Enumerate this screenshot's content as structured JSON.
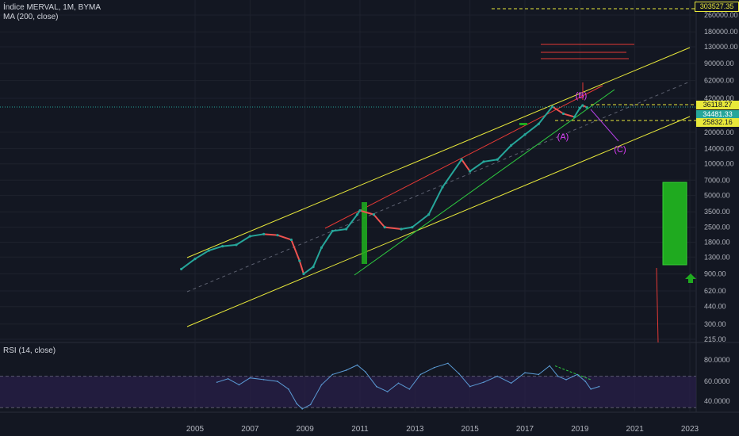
{
  "header": {
    "title": "Índice MERVAL, 1M, BYMA",
    "ma_label": "MA (200, close)",
    "rsi_label": "RSI (14, close)"
  },
  "colors": {
    "background": "#131722",
    "up_candle": "#26a69a",
    "down_candle": "#ef5350",
    "channel": "#e8e83a",
    "trendline_red": "#e53935",
    "trendline_green": "#2ecc40",
    "rsi_line": "#5b9bd5",
    "rsi_band": "#2a1f4a",
    "wave_label": "#e040fb",
    "target_box": "#1faa1f"
  },
  "price_labels": {
    "top": "303527.35",
    "upper": "36118.27",
    "last": "34481.33",
    "lower": "25832.16"
  },
  "wave_labels": [
    "(B)",
    "(A)",
    "(C)"
  ],
  "chart_data": [
    {
      "type": "line",
      "panel": "price",
      "scale": "log",
      "x_ticks": [
        "2005",
        "2007",
        "2009",
        "2011",
        "2013",
        "2015",
        "2017",
        "2019",
        "2021",
        "2023"
      ],
      "y_ticks": [
        "260000.00",
        "180000.00",
        "130000.00",
        "90000.00",
        "62000.00",
        "42000.00",
        "20000.00",
        "14000.00",
        "10000.00",
        "7000.00",
        "5000.00",
        "3500.00",
        "2500.00",
        "1800.00",
        "1300.00",
        "900.00",
        "620.00",
        "440.00",
        "300.00",
        "215.00"
      ],
      "ylim": [
        215,
        260000
      ],
      "series": [
        {
          "points": [
            [
              2004.5,
              1000
            ],
            [
              2005.0,
              1250
            ],
            [
              2005.5,
              1500
            ],
            [
              2006.0,
              1650
            ],
            [
              2006.5,
              1700
            ],
            [
              2007.0,
              2050
            ],
            [
              2007.5,
              2150
            ],
            [
              2008.0,
              2100
            ],
            [
              2008.5,
              1900
            ],
            [
              2008.8,
              1200
            ],
            [
              2008.95,
              900
            ],
            [
              2009.3,
              1050
            ],
            [
              2009.6,
              1600
            ],
            [
              2010.0,
              2300
            ],
            [
              2010.5,
              2400
            ],
            [
              2010.9,
              3300
            ],
            [
              2011.0,
              3600
            ],
            [
              2011.5,
              3300
            ],
            [
              2011.9,
              2500
            ],
            [
              2012.5,
              2400
            ],
            [
              2012.9,
              2500
            ],
            [
              2013.5,
              3300
            ],
            [
              2014.0,
              6000
            ],
            [
              2014.7,
              11000
            ],
            [
              2015.0,
              8500
            ],
            [
              2015.5,
              10500
            ],
            [
              2016.0,
              11000
            ],
            [
              2016.5,
              15000
            ],
            [
              2017.0,
              19000
            ],
            [
              2017.5,
              24000
            ],
            [
              2018.0,
              35000
            ],
            [
              2018.4,
              30000
            ],
            [
              2018.8,
              28000
            ],
            [
              2019.0,
              34000
            ],
            [
              2019.1,
              36000
            ],
            [
              2019.25,
              34481
            ]
          ]
        }
      ]
    },
    {
      "type": "line",
      "panel": "rsi",
      "y_ticks": [
        "80.0000",
        "60.0000",
        "40.0000"
      ],
      "ylim": [
        30,
        100
      ],
      "series": [
        {
          "points": [
            [
              2005.8,
              63
            ],
            [
              2006.2,
              67
            ],
            [
              2006.6,
              60
            ],
            [
              2007.0,
              68
            ],
            [
              2007.5,
              66
            ],
            [
              2008.0,
              64
            ],
            [
              2008.4,
              55
            ],
            [
              2008.7,
              38
            ],
            [
              2008.9,
              32
            ],
            [
              2009.2,
              37
            ],
            [
              2009.6,
              60
            ],
            [
              2010.0,
              72
            ],
            [
              2010.5,
              77
            ],
            [
              2010.9,
              83
            ],
            [
              2011.2,
              75
            ],
            [
              2011.6,
              58
            ],
            [
              2012.0,
              52
            ],
            [
              2012.4,
              62
            ],
            [
              2012.8,
              55
            ],
            [
              2013.2,
              72
            ],
            [
              2013.7,
              80
            ],
            [
              2014.2,
              85
            ],
            [
              2014.6,
              73
            ],
            [
              2015.0,
              58
            ],
            [
              2015.5,
              63
            ],
            [
              2016.0,
              70
            ],
            [
              2016.5,
              62
            ],
            [
              2017.0,
              74
            ],
            [
              2017.5,
              72
            ],
            [
              2017.9,
              82
            ],
            [
              2018.2,
              70
            ],
            [
              2018.5,
              66
            ],
            [
              2018.9,
              72
            ],
            [
              2019.2,
              64
            ],
            [
              2019.4,
              55
            ],
            [
              2019.7,
              58
            ]
          ]
        }
      ]
    }
  ]
}
